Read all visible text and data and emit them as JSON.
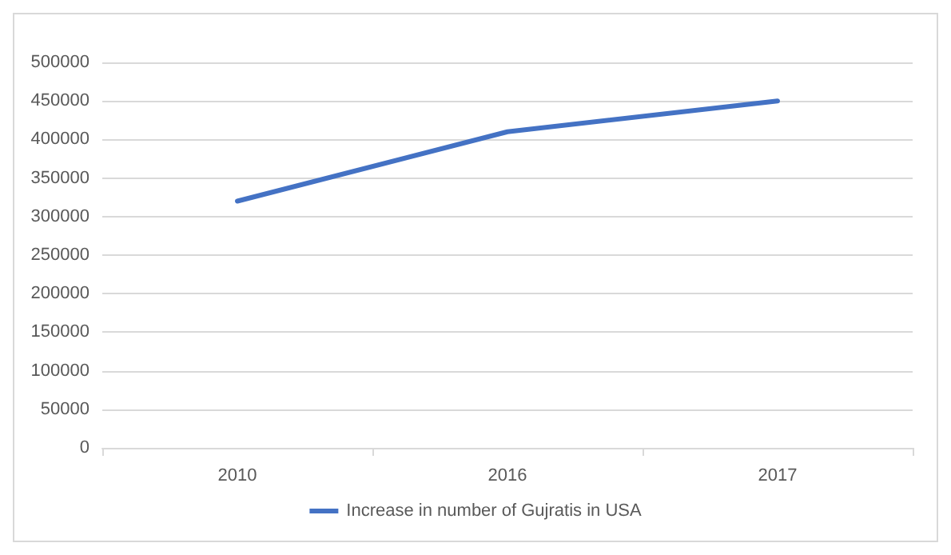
{
  "chart_data": {
    "type": "line",
    "categories": [
      "2010",
      "2016",
      "2017"
    ],
    "series": [
      {
        "name": "Increase in number of Gujratis in USA",
        "color": "#4472c4",
        "values": [
          320000,
          410000,
          450000
        ]
      }
    ],
    "ylim": [
      0,
      500000
    ],
    "yticks": [
      0,
      50000,
      100000,
      150000,
      200000,
      250000,
      300000,
      350000,
      400000,
      450000,
      500000
    ],
    "grid": "y",
    "legend": "bottom",
    "marker": "none",
    "line_style": "solid"
  }
}
